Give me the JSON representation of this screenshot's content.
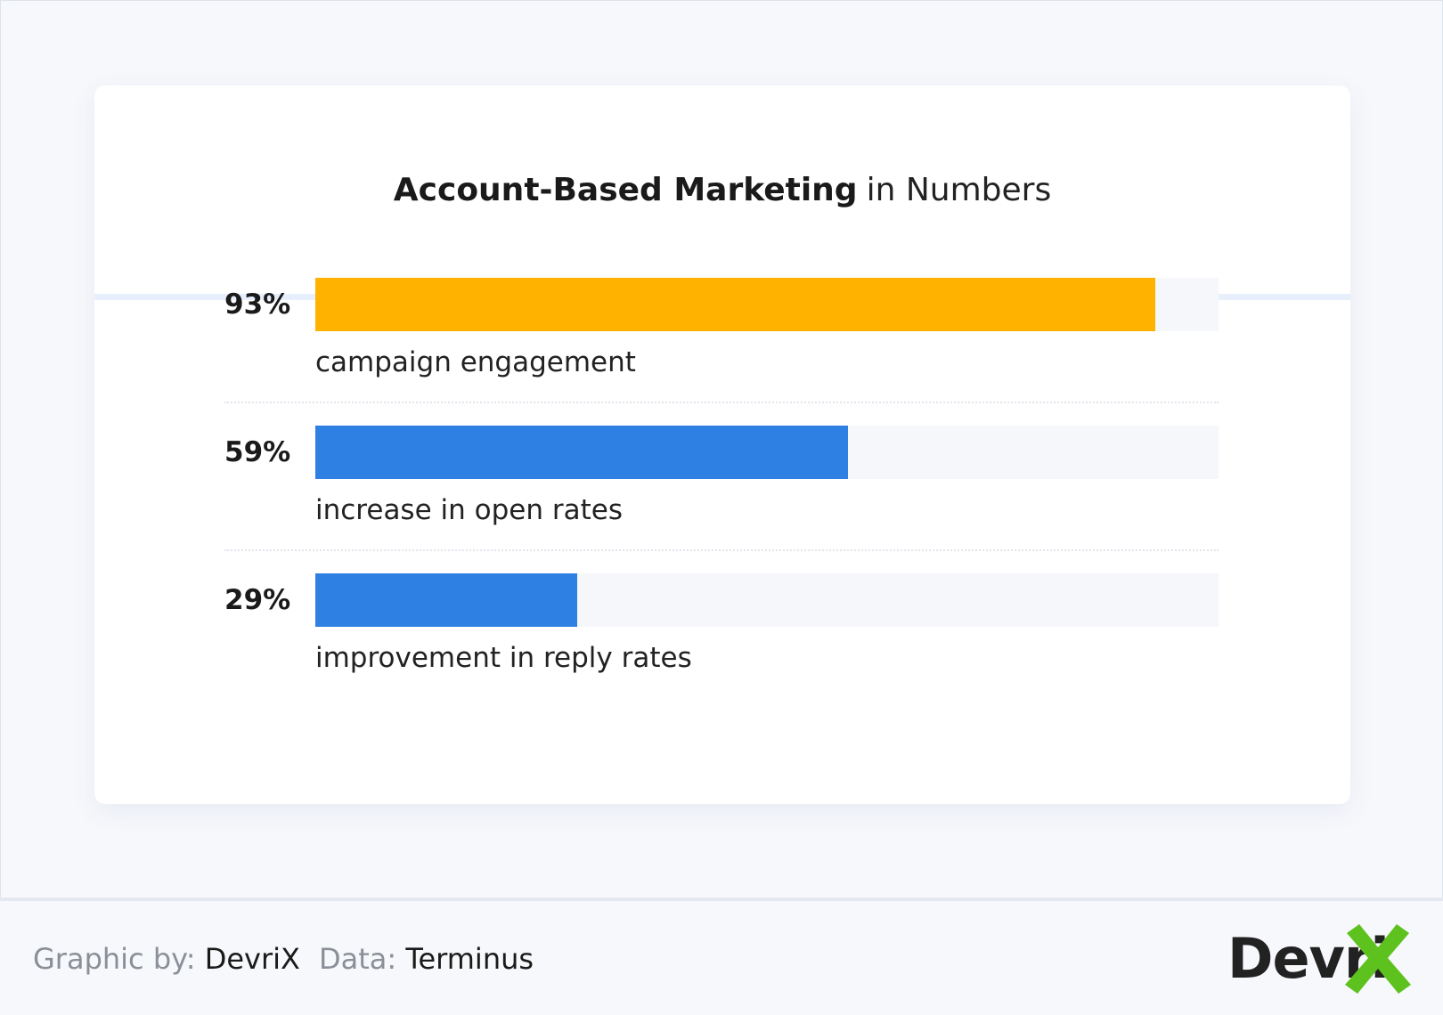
{
  "header": {
    "title_bold": "Account-Based Marketing",
    "title_light": "in Numbers"
  },
  "chart_data": {
    "type": "bar",
    "orientation": "horizontal",
    "categories": [
      "campaign engagement",
      "increase in open rates",
      "improvement in reply rates"
    ],
    "values": [
      93,
      59,
      29
    ],
    "value_labels": [
      "93%",
      "59%",
      "29%"
    ],
    "xlim": [
      0,
      100
    ],
    "colors": [
      "#FFB300",
      "#2E80E2",
      "#2E80E2"
    ],
    "track_color": "#F6F7FB",
    "grid": false
  },
  "footer": {
    "graphic_key": "Graphic by:",
    "graphic_value": "DevriX",
    "data_key": "Data:",
    "data_value": "Terminus",
    "logo_text": "Devri",
    "logo_accent_color": "#5DC21E",
    "logo_icon": "x-mark-icon"
  }
}
